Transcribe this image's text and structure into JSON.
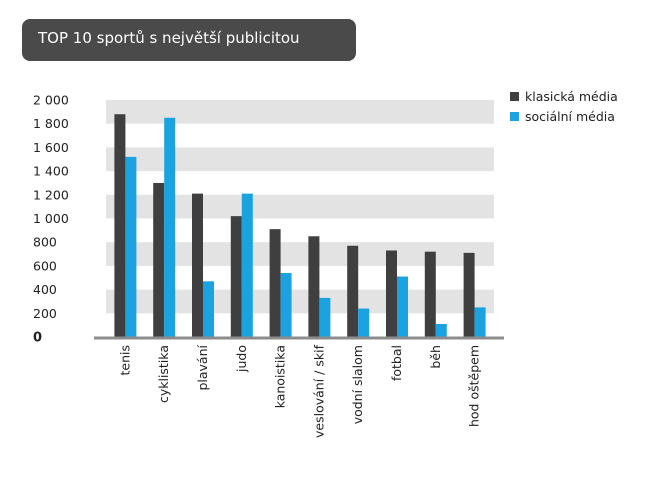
{
  "chart_data": {
    "type": "bar",
    "title": "TOP 10 sportů s největší publicitou",
    "categories": [
      "tenis",
      "cyklistika",
      "plavání",
      "judo",
      "kanoistika",
      "veslování / skif",
      "vodní slalom",
      "fotbal",
      "běh",
      "hod oštěpem"
    ],
    "series": [
      {
        "name": "klasická média",
        "color": "#3f3f3f",
        "values": [
          1880,
          1300,
          1210,
          1020,
          910,
          850,
          770,
          730,
          720,
          710
        ]
      },
      {
        "name": "sociální média",
        "color": "#1aa3e0",
        "values": [
          1520,
          1850,
          470,
          1210,
          540,
          330,
          240,
          510,
          110,
          250
        ]
      }
    ],
    "yticks": [
      "0",
      "200",
      "400",
      "600",
      "800",
      "1 000",
      "1 200",
      "1 400",
      "1 600",
      "1 800",
      "2 000"
    ],
    "ylim": [
      0,
      2000
    ],
    "legend_position": "top-right",
    "grid": "alternating horizontal bands"
  }
}
